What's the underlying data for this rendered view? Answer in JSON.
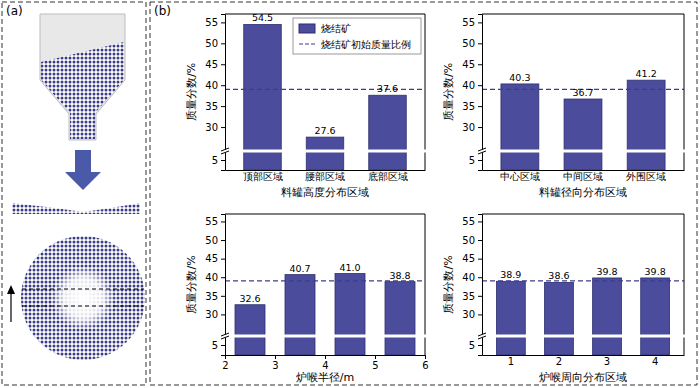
{
  "panel_labels": [
    "(a)",
    "(b)"
  ],
  "chart_data": [
    {
      "type": "bar",
      "xlabel": "料罐高度分布区域",
      "ylabel": "质量分数/%",
      "categories": [
        "顶部区域",
        "腰部区域",
        "底部区域"
      ],
      "series": [
        {
          "name": "烧结矿",
          "color": "#4b4c9b",
          "values": [
            54.5,
            27.6,
            37.6
          ]
        }
      ],
      "reference_line": {
        "name": "烧结矿初始质量比例",
        "value": 39,
        "color": "#3c3c8c",
        "line_style": "dashed"
      },
      "ylim": [
        0,
        57
      ],
      "ybreak": [
        8,
        25
      ],
      "yticks": [
        5,
        30,
        35,
        40,
        45,
        50,
        55
      ],
      "data_labels": true,
      "legend": "upper right"
    },
    {
      "type": "bar",
      "xlabel": "料罐径向分布区域",
      "ylabel": "质量分数/%",
      "categories": [
        "中心区域",
        "中间区域",
        "外围区域"
      ],
      "series": [
        {
          "color": "#4b4c9b",
          "values": [
            40.3,
            36.7,
            41.2
          ]
        }
      ],
      "reference_line": {
        "value": 39,
        "color": "#3c3c8c",
        "line_style": "dashed"
      },
      "ylim": [
        0,
        57
      ],
      "ybreak": [
        8,
        25
      ],
      "yticks": [
        5,
        30,
        35,
        40,
        45,
        50,
        55
      ],
      "data_labels": true
    },
    {
      "type": "bar",
      "xlabel": "炉喉半径/m",
      "ylabel": "质量分数/%",
      "x": [
        2.5,
        3.5,
        4.5,
        5.5
      ],
      "xlim": [
        2,
        6
      ],
      "xticks": [
        2,
        3,
        4,
        5,
        6
      ],
      "series": [
        {
          "color": "#4b4c9b",
          "values": [
            32.6,
            40.7,
            41.0,
            38.8
          ],
          "value_labels": [
            "32.6",
            "40.7",
            "41.0",
            "38.8"
          ]
        }
      ],
      "reference_line": {
        "value": 39,
        "color": "#3c3c8c",
        "line_style": "dashed"
      },
      "ylim": [
        0,
        57
      ],
      "ybreak": [
        8,
        25
      ],
      "yticks": [
        5,
        30,
        35,
        40,
        45,
        50,
        55
      ],
      "data_labels": true
    },
    {
      "type": "bar",
      "xlabel": "炉喉周向分布区域",
      "ylabel": "质量分数/%",
      "categories": [
        "1",
        "2",
        "3",
        "4"
      ],
      "series": [
        {
          "color": "#4b4c9b",
          "values": [
            38.9,
            38.6,
            39.8,
            39.8
          ]
        }
      ],
      "reference_line": {
        "value": 39,
        "color": "#3c3c8c",
        "line_style": "dashed"
      },
      "ylim": [
        0,
        57
      ],
      "ybreak": [
        8,
        25
      ],
      "yticks": [
        5,
        30,
        35,
        40,
        45,
        50,
        55
      ],
      "data_labels": true
    }
  ]
}
